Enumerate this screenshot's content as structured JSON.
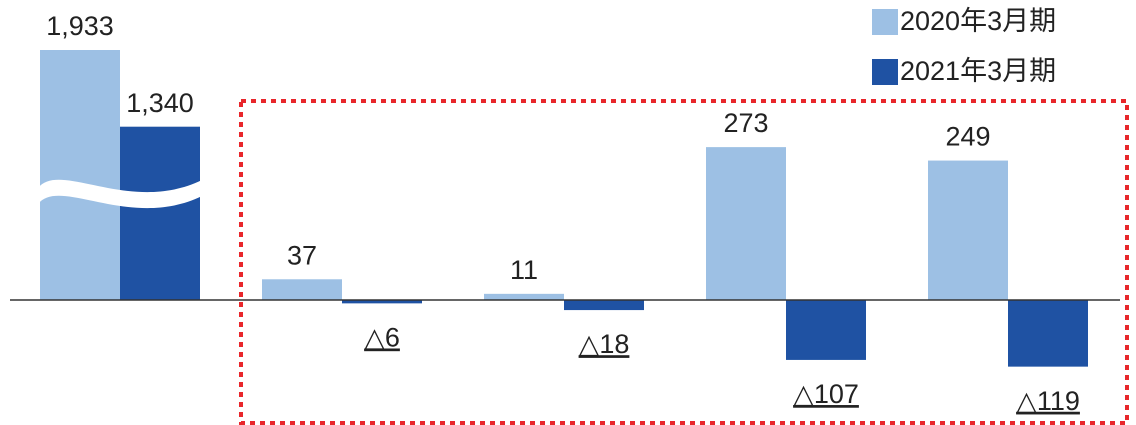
{
  "chart_data": {
    "type": "bar",
    "categories": [
      null,
      null,
      null,
      null,
      null
    ],
    "series": [
      {
        "name": "2020年3月期",
        "color": "#9dc0e4",
        "values": [
          1933,
          37,
          11,
          273,
          249
        ],
        "value_labels": [
          "1,933",
          "37",
          "11",
          "273",
          "249"
        ]
      },
      {
        "name": "2021年3月期",
        "color": "#1f52a3",
        "values": [
          1340,
          -6,
          -18,
          -107,
          -119
        ],
        "value_labels": [
          "1,340",
          "△6",
          "△18",
          "△107",
          "△119"
        ]
      }
    ],
    "ylim": [
      -200,
      400
    ]
  }
}
